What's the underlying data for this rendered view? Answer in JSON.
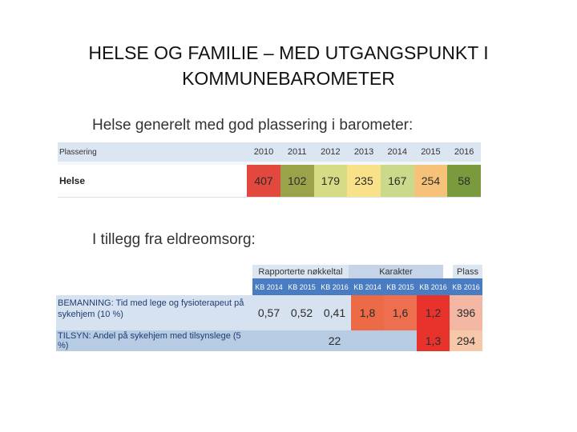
{
  "title": "HELSE OG FAMILIE – MED UTGANGSPUNKT I KOMMUNEBAROMETER",
  "subtitle1": "Helse generelt med god plassering i barometer:",
  "subtitle2": "I tillegg fra eldreomsorg:",
  "table1": {
    "header_label": "Plassering",
    "years": [
      "2010",
      "2011",
      "2012",
      "2013",
      "2014",
      "2015",
      "2016"
    ],
    "row_label": "Helse",
    "values": [
      "407",
      "102",
      "179",
      "235",
      "167",
      "254",
      "58"
    ],
    "colors": [
      "#e2483d",
      "#9aa34a",
      "#d6dc86",
      "#f8e189",
      "#cbda8a",
      "#f6c27a",
      "#7a9a3e"
    ]
  },
  "table2": {
    "groups": [
      "Rapporterte nøkkeltal",
      "Karakter",
      "Plass"
    ],
    "columns": [
      "KB 2014",
      "KB 2015",
      "KB 2016",
      "KB 2014",
      "KB 2015",
      "KB 2016",
      "KB 2016"
    ],
    "row1_label": "BEMANNING: Tid med lege og fysioterapeut på sykehjem (10 %)",
    "row1_values": [
      "0,57",
      "0,52",
      "0,41",
      "1,8",
      "1,6",
      "1,2",
      "396"
    ],
    "row1_colors": [
      "#d6e2ef",
      "#d6e2ef",
      "#d6e2ef",
      "#ed6a47",
      "#ee6f4f",
      "#e8332d",
      "#f4b7a3"
    ],
    "row2_label": "TILSYN: Andel på sykehjem med tilsynslege (5 %)",
    "row2_values": [
      "22",
      "1,3",
      "294"
    ],
    "row2_colors": [
      "#b7cbe3",
      "#e8332d",
      "#f6c7a8"
    ]
  }
}
